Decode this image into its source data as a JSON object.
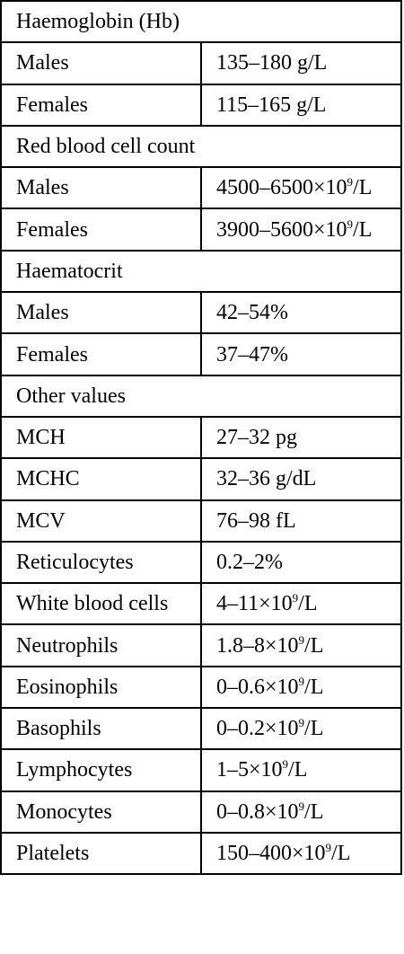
{
  "sections": [
    {
      "title": "Haemoglobin (Hb)",
      "rows": [
        {
          "label": "Males",
          "value": "135–180 g/L"
        },
        {
          "label": "Females",
          "value": "115–165 g/L"
        }
      ]
    },
    {
      "title": "Red blood cell count",
      "rows": [
        {
          "label": "Males",
          "value": "4500–6500×10",
          "sup": "9",
          "unit": "/L"
        },
        {
          "label": "Females",
          "value": "3900–5600×10",
          "sup": "9",
          "unit": "/L"
        }
      ]
    },
    {
      "title": "Haematocrit",
      "rows": [
        {
          "label": "Males",
          "value": "42–54%"
        },
        {
          "label": "Females",
          "value": "37–47%"
        }
      ]
    },
    {
      "title": "Other values",
      "rows": [
        {
          "label": "MCH",
          "value": "27–32 pg"
        },
        {
          "label": "MCHC",
          "value": "32–36 g/dL"
        },
        {
          "label": "MCV",
          "value": "76–98 fL"
        },
        {
          "label": "Reticulocytes",
          "value": "0.2–2%"
        },
        {
          "label": "White blood cells",
          "value": "4–11×10",
          "sup": "9",
          "unit": "/L"
        },
        {
          "label": "Neutrophils",
          "value": "1.8–8×10",
          "sup": "9",
          "unit": "/L"
        },
        {
          "label": "Eosinophils",
          "value": "0–0.6×10",
          "sup": "9",
          "unit": "/L"
        },
        {
          "label": "Basophils",
          "value": "0–0.2×10",
          "sup": "9",
          "unit": "/L"
        },
        {
          "label": "Lymphocytes",
          "value": "1–5×10",
          "sup": "9",
          "unit": "/L"
        },
        {
          "label": "Monocytes",
          "value": "0–0.8×10",
          "sup": "9",
          "unit": "/L"
        },
        {
          "label": "Platelets",
          "value": "150–400×10",
          "sup": "9",
          "unit": "/L"
        }
      ]
    }
  ]
}
